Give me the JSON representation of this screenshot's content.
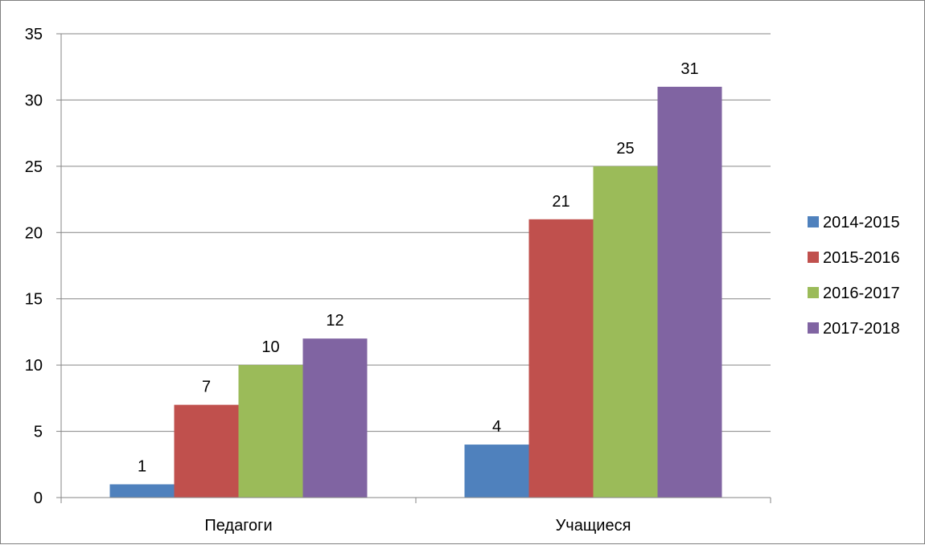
{
  "chart_data": {
    "type": "bar",
    "categories": [
      "Педагоги",
      "Учащиеся"
    ],
    "series": [
      {
        "name": "2014-2015",
        "values": [
          1,
          4
        ],
        "color": "#4F81BD"
      },
      {
        "name": "2015-2016",
        "values": [
          7,
          21
        ],
        "color": "#C0504D"
      },
      {
        "name": "2016-2017",
        "values": [
          10,
          25
        ],
        "color": "#9BBB59"
      },
      {
        "name": "2017-2018",
        "values": [
          12,
          31
        ],
        "color": "#8064A2"
      }
    ],
    "ylim": [
      0,
      35
    ],
    "yticks": [
      0,
      5,
      10,
      15,
      20,
      25,
      30,
      35
    ],
    "grid": true,
    "legend": "right",
    "data_labels": true
  }
}
